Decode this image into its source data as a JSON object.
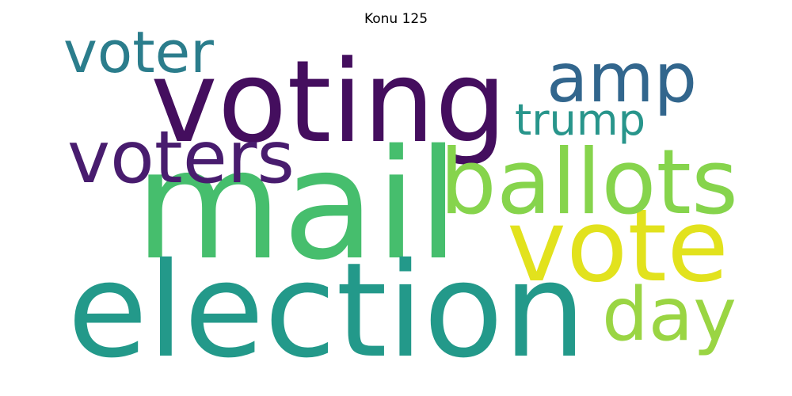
{
  "title": "Konu 125",
  "words": [
    {
      "text": "mail",
      "color": "#46be6d"
    },
    {
      "text": "election",
      "color": "#23998a"
    },
    {
      "text": "voting",
      "color": "#440e5e"
    },
    {
      "text": "vote",
      "color": "#e2e21d"
    },
    {
      "text": "ballots",
      "color": "#86d44c"
    },
    {
      "text": "amp",
      "color": "#32668d"
    },
    {
      "text": "day",
      "color": "#9ad543"
    },
    {
      "text": "voters",
      "color": "#481c6e"
    },
    {
      "text": "voter",
      "color": "#2b7d8c"
    },
    {
      "text": "trump",
      "color": "#28958b"
    }
  ]
}
